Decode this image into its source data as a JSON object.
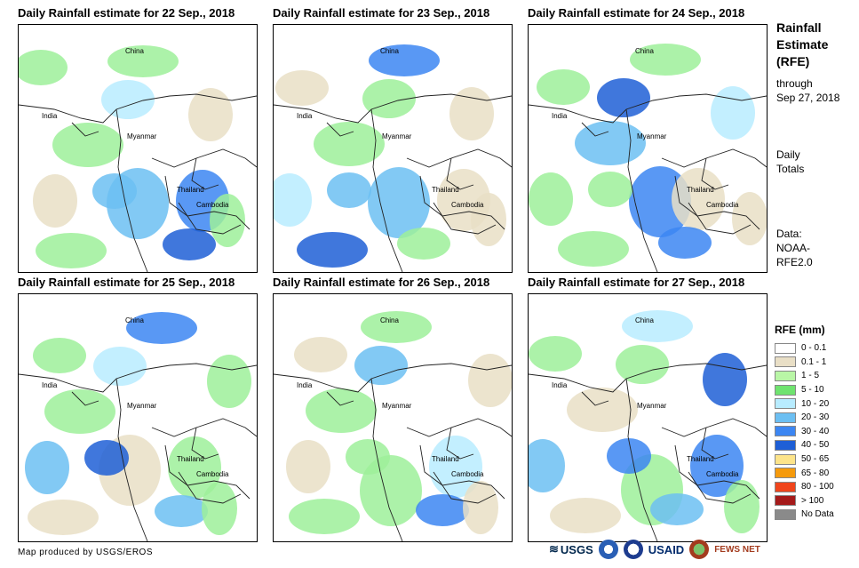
{
  "panels": [
    {
      "title": "Daily Rainfall estimate for 22 Sep., 2018",
      "palette": [
        "#9ef09a",
        "#9ef09a",
        "#e9dfc6",
        "#6cbff2",
        "#3c86f2",
        "#9ef09a",
        "#b8ecff",
        "#e9dfc6",
        "#9ef09a",
        "#1e5fd6",
        "#9ef09a",
        "#6cbff2"
      ]
    },
    {
      "title": "Daily Rainfall estimate for 23 Sep., 2018",
      "palette": [
        "#e9dfc6",
        "#9ef09a",
        "#b8ecff",
        "#6cbff2",
        "#e9dfc6",
        "#3c86f2",
        "#9ef09a",
        "#e9dfc6",
        "#1e5fd6",
        "#9ef09a",
        "#e9dfc6",
        "#6cbff2"
      ]
    },
    {
      "title": "Daily Rainfall estimate for 24 Sep., 2018",
      "palette": [
        "#9ef09a",
        "#6cbff2",
        "#9ef09a",
        "#3c86f2",
        "#e9dfc6",
        "#9ef09a",
        "#1e5fd6",
        "#b8ecff",
        "#9ef09a",
        "#3c86f2",
        "#e9dfc6",
        "#9ef09a"
      ]
    },
    {
      "title": "Daily Rainfall estimate for 25 Sep., 2018",
      "palette": [
        "#9ef09a",
        "#9ef09a",
        "#6cbff2",
        "#e9dfc6",
        "#9ef09a",
        "#3c86f2",
        "#b8ecff",
        "#9ef09a",
        "#e9dfc6",
        "#6cbff2",
        "#9ef09a",
        "#1e5fd6"
      ]
    },
    {
      "title": "Daily Rainfall estimate for 26 Sep., 2018",
      "palette": [
        "#e9dfc6",
        "#9ef09a",
        "#e9dfc6",
        "#9ef09a",
        "#b8ecff",
        "#9ef09a",
        "#6cbff2",
        "#e9dfc6",
        "#9ef09a",
        "#3c86f2",
        "#e9dfc6",
        "#9ef09a"
      ]
    },
    {
      "title": "Daily Rainfall estimate for 27 Sep., 2018",
      "palette": [
        "#9ef09a",
        "#e9dfc6",
        "#6cbff2",
        "#9ef09a",
        "#3c86f2",
        "#b8ecff",
        "#9ef09a",
        "#1e5fd6",
        "#e9dfc6",
        "#6cbff2",
        "#9ef09a",
        "#3c86f2"
      ]
    }
  ],
  "map_labels": {
    "china": "China",
    "india": "India",
    "myanmar": "Myanmar",
    "thailand": "Thailand",
    "cambodia": "Cambodia"
  },
  "sidebar": {
    "title_lines": [
      "Rainfall",
      "Estimate",
      "(RFE)"
    ],
    "through": "through",
    "date": "Sep 27, 2018",
    "daily": "Daily",
    "totals": "Totals",
    "data_label": "Data:",
    "source_1": "NOAA-",
    "source_2": "RFE2.0"
  },
  "legend": {
    "title": "RFE (mm)",
    "items": [
      {
        "label": "0 - 0.1",
        "color": "#ffffff"
      },
      {
        "label": "0.1 - 1",
        "color": "#e9dfc6"
      },
      {
        "label": "1 - 5",
        "color": "#b9f6a6"
      },
      {
        "label": "5 - 10",
        "color": "#6fe36f"
      },
      {
        "label": "10 - 20",
        "color": "#b8ecff"
      },
      {
        "label": "20 - 30",
        "color": "#6cbff2"
      },
      {
        "label": "30 - 40",
        "color": "#3c86f2"
      },
      {
        "label": "40 - 50",
        "color": "#1e5fd6"
      },
      {
        "label": "50 - 65",
        "color": "#fde48a"
      },
      {
        "label": "65 - 80",
        "color": "#f59a0c"
      },
      {
        "label": "80 - 100",
        "color": "#f0451c"
      },
      {
        "label": "> 100",
        "color": "#a51b1b"
      },
      {
        "label": "No Data",
        "color": "#8a8a8a"
      }
    ]
  },
  "footer": {
    "credit": "Map produced by USGS/EROS",
    "logo_usgs": "USGS",
    "logo_usaid": "USAID",
    "logo_fewsnet": "FEWS NET"
  }
}
